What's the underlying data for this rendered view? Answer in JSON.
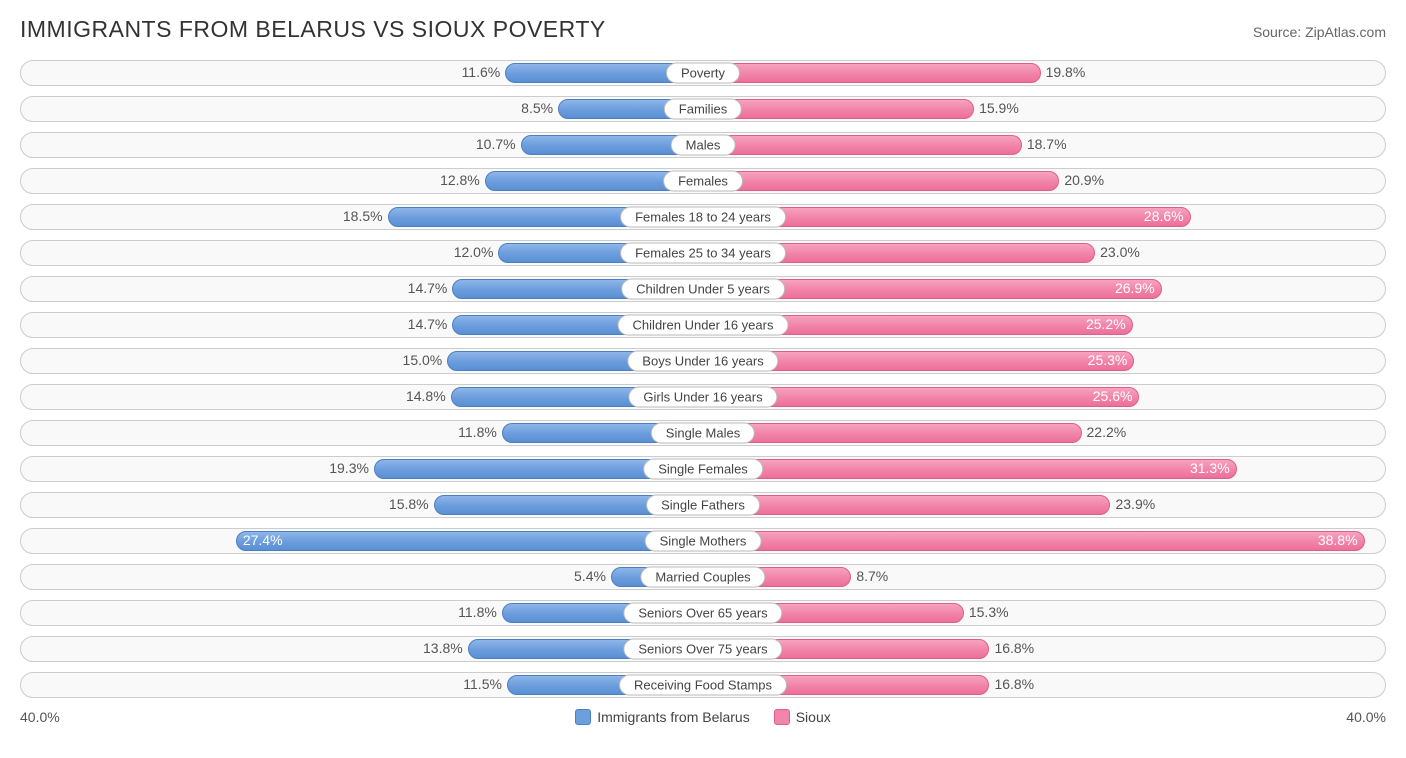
{
  "header": {
    "title": "IMMIGRANTS FROM BELARUS VS SIOUX POVERTY",
    "source": "Source: ZipAtlas.com"
  },
  "chart": {
    "type": "diverging-bar",
    "axis_max": 40.0,
    "axis_max_label_left": "40.0%",
    "axis_max_label_right": "40.0%",
    "left_series": {
      "name": "Immigrants from Belarus",
      "bar_gradient": [
        "#8fb6e8",
        "#6d9fde",
        "#5a8fd4"
      ],
      "border_color": "#4a7fc4",
      "swatch_color": "#6d9fde"
    },
    "right_series": {
      "name": "Sioux",
      "bar_gradient": [
        "#f7a3bf",
        "#f186aa",
        "#ed6f9a"
      ],
      "border_color": "#de5f8a",
      "swatch_color": "#f186aa"
    },
    "track_background": "#f9f9f9",
    "track_border": "#cccccc",
    "rows": [
      {
        "category": "Poverty",
        "left_value": 11.6,
        "left_label": "11.6%",
        "right_value": 19.8,
        "right_label": "19.8%",
        "left_inside": false,
        "right_inside": false
      },
      {
        "category": "Families",
        "left_value": 8.5,
        "left_label": "8.5%",
        "right_value": 15.9,
        "right_label": "15.9%",
        "left_inside": false,
        "right_inside": false
      },
      {
        "category": "Males",
        "left_value": 10.7,
        "left_label": "10.7%",
        "right_value": 18.7,
        "right_label": "18.7%",
        "left_inside": false,
        "right_inside": false
      },
      {
        "category": "Females",
        "left_value": 12.8,
        "left_label": "12.8%",
        "right_value": 20.9,
        "right_label": "20.9%",
        "left_inside": false,
        "right_inside": false
      },
      {
        "category": "Females 18 to 24 years",
        "left_value": 18.5,
        "left_label": "18.5%",
        "right_value": 28.6,
        "right_label": "28.6%",
        "left_inside": false,
        "right_inside": true
      },
      {
        "category": "Females 25 to 34 years",
        "left_value": 12.0,
        "left_label": "12.0%",
        "right_value": 23.0,
        "right_label": "23.0%",
        "left_inside": false,
        "right_inside": false
      },
      {
        "category": "Children Under 5 years",
        "left_value": 14.7,
        "left_label": "14.7%",
        "right_value": 26.9,
        "right_label": "26.9%",
        "left_inside": false,
        "right_inside": true
      },
      {
        "category": "Children Under 16 years",
        "left_value": 14.7,
        "left_label": "14.7%",
        "right_value": 25.2,
        "right_label": "25.2%",
        "left_inside": false,
        "right_inside": true
      },
      {
        "category": "Boys Under 16 years",
        "left_value": 15.0,
        "left_label": "15.0%",
        "right_value": 25.3,
        "right_label": "25.3%",
        "left_inside": false,
        "right_inside": true
      },
      {
        "category": "Girls Under 16 years",
        "left_value": 14.8,
        "left_label": "14.8%",
        "right_value": 25.6,
        "right_label": "25.6%",
        "left_inside": false,
        "right_inside": true
      },
      {
        "category": "Single Males",
        "left_value": 11.8,
        "left_label": "11.8%",
        "right_value": 22.2,
        "right_label": "22.2%",
        "left_inside": false,
        "right_inside": false
      },
      {
        "category": "Single Females",
        "left_value": 19.3,
        "left_label": "19.3%",
        "right_value": 31.3,
        "right_label": "31.3%",
        "left_inside": false,
        "right_inside": true
      },
      {
        "category": "Single Fathers",
        "left_value": 15.8,
        "left_label": "15.8%",
        "right_value": 23.9,
        "right_label": "23.9%",
        "left_inside": false,
        "right_inside": false
      },
      {
        "category": "Single Mothers",
        "left_value": 27.4,
        "left_label": "27.4%",
        "right_value": 38.8,
        "right_label": "38.8%",
        "left_inside": true,
        "right_inside": true
      },
      {
        "category": "Married Couples",
        "left_value": 5.4,
        "left_label": "5.4%",
        "right_value": 8.7,
        "right_label": "8.7%",
        "left_inside": false,
        "right_inside": false
      },
      {
        "category": "Seniors Over 65 years",
        "left_value": 11.8,
        "left_label": "11.8%",
        "right_value": 15.3,
        "right_label": "15.3%",
        "left_inside": false,
        "right_inside": false
      },
      {
        "category": "Seniors Over 75 years",
        "left_value": 13.8,
        "left_label": "13.8%",
        "right_value": 16.8,
        "right_label": "16.8%",
        "left_inside": false,
        "right_inside": false
      },
      {
        "category": "Receiving Food Stamps",
        "left_value": 11.5,
        "left_label": "11.5%",
        "right_value": 16.8,
        "right_label": "16.8%",
        "left_inside": false,
        "right_inside": false
      }
    ]
  }
}
